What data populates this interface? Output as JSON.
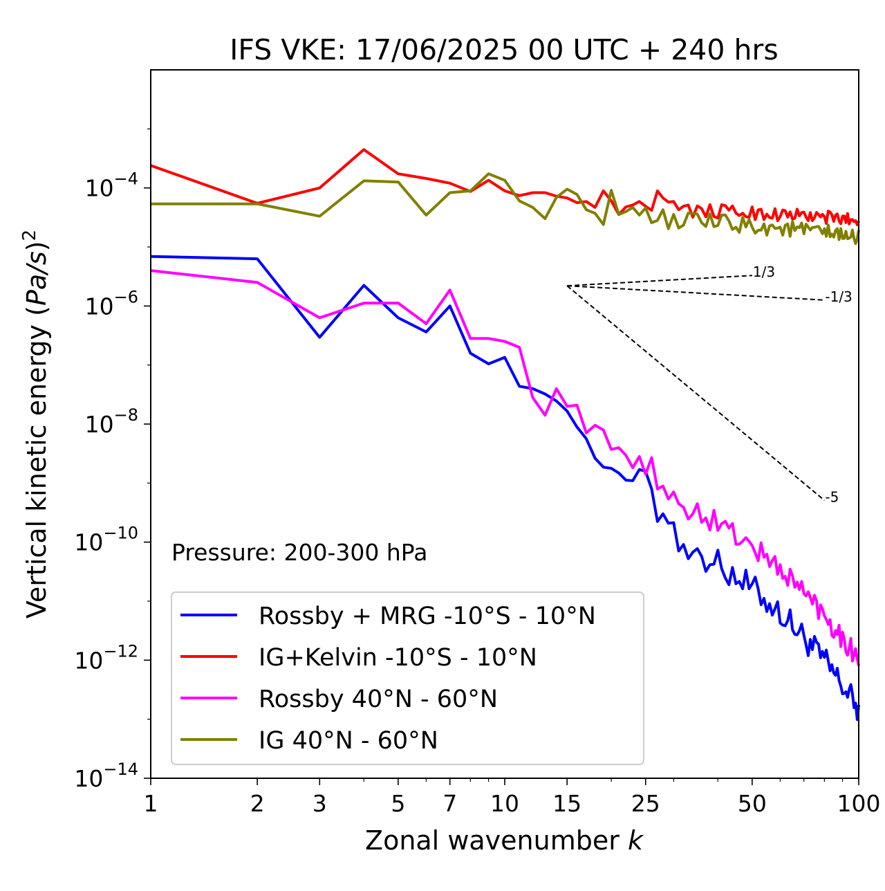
{
  "chart_data": {
    "type": "line",
    "title": "IFS VKE: 17/06/2025 00 UTC + 240 hrs",
    "xlabel": "Zonal wavenumber k",
    "ylabel": "Vertical kinetic energy (Pa/s)^2",
    "x_scale": "log",
    "y_scale": "log",
    "xlim": [
      1,
      100
    ],
    "ylim": [
      1e-14,
      0.01
    ],
    "x_ticks": [
      {
        "value": 1,
        "label": "1"
      },
      {
        "value": 2,
        "label": "2"
      },
      {
        "value": 3,
        "label": "3"
      },
      {
        "value": 5,
        "label": "5"
      },
      {
        "value": 7,
        "label": "7"
      },
      {
        "value": 10,
        "label": "10"
      },
      {
        "value": 15,
        "label": "15"
      },
      {
        "value": 25,
        "label": "25"
      },
      {
        "value": 50,
        "label": "50"
      },
      {
        "value": 100,
        "label": "100"
      }
    ],
    "y_ticks": [
      {
        "exp": -4,
        "label": "10",
        "sup": "−4"
      },
      {
        "exp": -6,
        "label": "10",
        "sup": "−6"
      },
      {
        "exp": -8,
        "label": "10",
        "sup": "−8"
      },
      {
        "exp": -10,
        "label": "10",
        "sup": "−10"
      },
      {
        "exp": -12,
        "label": "10",
        "sup": "−12"
      },
      {
        "exp": -14,
        "label": "10",
        "sup": "−14"
      }
    ],
    "grid": false,
    "legend_position": "lower-left",
    "annotation": "Pressure: 200-300 hPa",
    "reference_slopes": {
      "origin": {
        "x": 15,
        "y": 2.2e-06
      },
      "lines": [
        {
          "slope": 0.3333,
          "x_end": 50,
          "label": "1/3"
        },
        {
          "slope": -0.3333,
          "x_end": 80,
          "label": "-1/3"
        },
        {
          "slope": -5,
          "x_end": 80,
          "label": "-5"
        }
      ]
    },
    "series": [
      {
        "name": "Rossby + MRG -10°S - 10°N",
        "color": "#0000ff",
        "log10_start": [
          -5.16,
          -5.2,
          -6.53,
          -5.65,
          -6.2,
          -6.44,
          -6.0,
          -6.8,
          -6.98,
          -6.87,
          -7.36,
          -7.4,
          -7.49,
          -7.61,
          -7.78,
          -8.05,
          -8.25,
          -8.58,
          -8.73,
          -8.75,
          -8.83,
          -8.95,
          -8.96,
          -8.77,
          -8.8,
          -9.1,
          -9.65,
          -9.52,
          -9.68,
          -9.67,
          -10.15,
          -10.04,
          -10.28,
          -10.17,
          -10.11,
          -10.24
        ],
        "jagged_tail": {
          "x_from": 37,
          "x_to": 100,
          "log10_start": -10.25,
          "log10_end": -12.85,
          "amplitude": 0.25
        },
        "values_sample": [
          6.9e-06,
          6.3e-06,
          2.9e-07,
          2.2e-06,
          6.3e-07,
          3.6e-07,
          1e-06,
          1.6e-07,
          1e-07,
          1.3e-07,
          4.4e-08,
          4e-08
        ]
      },
      {
        "name": "IG+Kelvin -10°S - 10°N",
        "color": "#ff0000",
        "log10_start": [
          -3.62,
          -4.26,
          -4.0,
          -3.35,
          -3.76,
          -3.84,
          -3.92,
          -4.06,
          -3.87,
          -4.05,
          -4.13,
          -4.08,
          -4.08,
          -4.14,
          -4.17,
          -4.25,
          -4.23,
          -4.33,
          -4.05,
          -4.22,
          -4.45,
          -4.32,
          -4.29,
          -4.23,
          -4.31,
          -4.38,
          -4.05,
          -4.17,
          -4.24,
          -4.23,
          -4.37,
          -4.31,
          -4.29
        ],
        "jagged_tail": {
          "x_from": 34,
          "x_to": 100,
          "log10_start": -4.38,
          "log10_end": -4.55,
          "amplitude": 0.12
        },
        "values_sample": [
          0.00024,
          5.5e-05,
          0.0001,
          0.00045,
          0.00017,
          0.000145,
          0.00012,
          8.7e-05
        ]
      },
      {
        "name": "Rossby 40°N - 60°N",
        "color": "#ff00ff",
        "log10_start": [
          -5.4,
          -5.6,
          -6.2,
          -5.95,
          -5.95,
          -6.3,
          -5.73,
          -6.55,
          -6.55,
          -6.6,
          -6.7,
          -7.55,
          -7.85,
          -7.4,
          -7.7,
          -7.68,
          -8.15,
          -8.02,
          -8.1,
          -8.43,
          -8.4,
          -8.53,
          -8.74,
          -8.55,
          -8.85,
          -8.57,
          -9.1,
          -9.05,
          -9.27,
          -9.15,
          -9.35,
          -9.41
        ],
        "jagged_tail": {
          "x_from": 33,
          "x_to": 100,
          "log10_start": -9.42,
          "log10_end": -12.0,
          "amplitude": 0.2
        },
        "values_sample": [
          4e-06,
          2.5e-06,
          6.3e-07,
          1.1e-06,
          1.1e-06,
          5e-07,
          1.9e-06,
          2.8e-07
        ]
      },
      {
        "name": "IG 40°N - 60°N",
        "color": "#808000",
        "log10_start": [
          -4.27,
          -4.27,
          -4.48,
          -3.88,
          -3.9,
          -4.46,
          -4.08,
          -4.05,
          -3.76,
          -3.87,
          -4.22,
          -4.33,
          -4.52,
          -4.16,
          -4.02,
          -4.11,
          -4.37,
          -4.43,
          -4.62,
          -4.04,
          -4.45,
          -4.4,
          -4.33,
          -4.46,
          -4.34,
          -4.59,
          -4.55,
          -4.37
        ],
        "jagged_tail": {
          "x_from": 29,
          "x_to": 100,
          "log10_start": -4.55,
          "log10_end": -4.85,
          "amplitude": 0.15
        },
        "values_sample": [
          5.4e-05,
          5.4e-05,
          3.3e-05,
          0.00013,
          0.000125,
          3.5e-05,
          8.3e-05,
          8.9e-05
        ]
      }
    ]
  }
}
